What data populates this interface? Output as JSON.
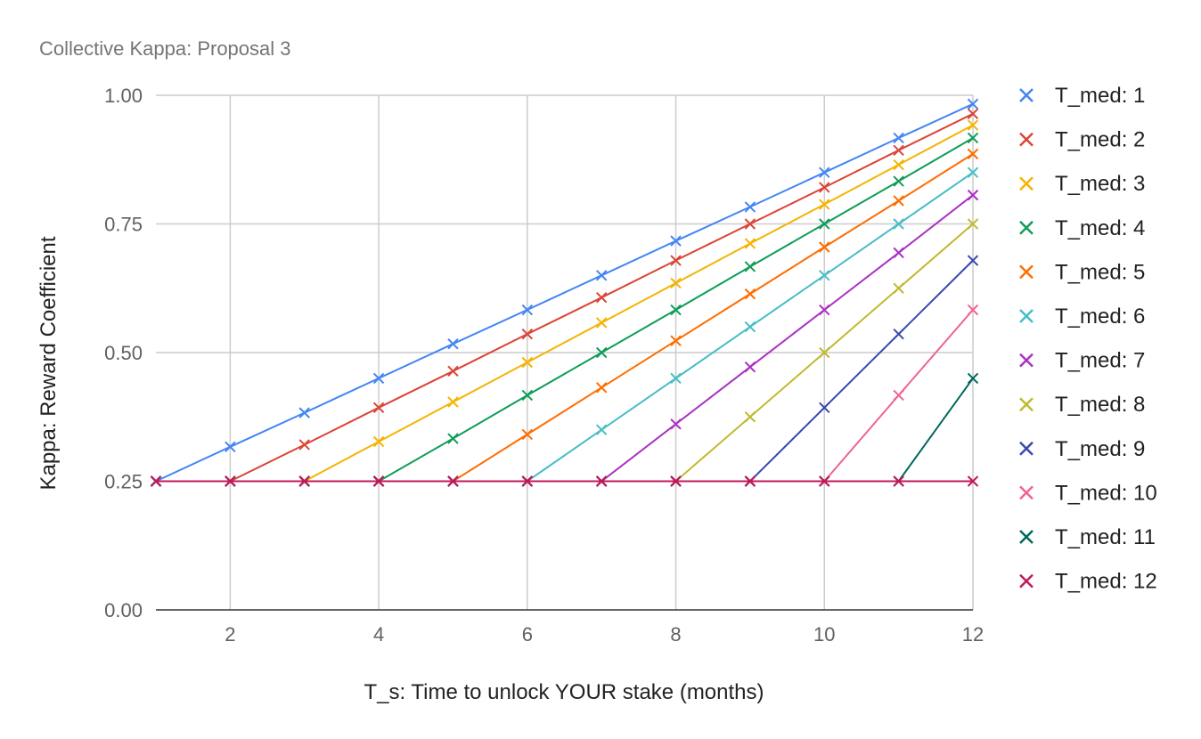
{
  "chart_data": {
    "type": "line",
    "title": "Collective Kappa: Proposal 3",
    "xlabel": "T_s: Time to unlock YOUR stake (months)",
    "ylabel": "Kappa: Reward Coefficient",
    "x": [
      1,
      2,
      3,
      4,
      5,
      6,
      7,
      8,
      9,
      10,
      11,
      12
    ],
    "xlim": [
      1,
      12
    ],
    "ylim": [
      0,
      1
    ],
    "x_ticks": [
      "2",
      "4",
      "6",
      "8",
      "10",
      "12"
    ],
    "x_tick_values": [
      2,
      4,
      6,
      8,
      10,
      12
    ],
    "y_ticks": [
      "0.00",
      "0.25",
      "0.50",
      "0.75",
      "1.00"
    ],
    "y_tick_values": [
      0,
      0.25,
      0.5,
      0.75,
      1.0
    ],
    "grid": true,
    "legend_position": "right",
    "marker": "x",
    "series": [
      {
        "name": "T_med: 1",
        "color": "#4285f4",
        "values": [
          0.25,
          0.317,
          0.383,
          0.45,
          0.517,
          0.583,
          0.65,
          0.717,
          0.783,
          0.85,
          0.917,
          0.983
        ]
      },
      {
        "name": "T_med: 2",
        "color": "#db4437",
        "values": [
          0.25,
          0.25,
          0.321,
          0.393,
          0.464,
          0.536,
          0.607,
          0.679,
          0.75,
          0.821,
          0.893,
          0.964
        ]
      },
      {
        "name": "T_med: 3",
        "color": "#f4b400",
        "values": [
          0.25,
          0.25,
          0.25,
          0.327,
          0.404,
          0.481,
          0.558,
          0.635,
          0.712,
          0.788,
          0.865,
          0.942
        ]
      },
      {
        "name": "T_med: 4",
        "color": "#0f9d58",
        "values": [
          0.25,
          0.25,
          0.25,
          0.25,
          0.333,
          0.417,
          0.5,
          0.583,
          0.667,
          0.75,
          0.833,
          0.917
        ]
      },
      {
        "name": "T_med: 5",
        "color": "#ff6d00",
        "values": [
          0.25,
          0.25,
          0.25,
          0.25,
          0.25,
          0.341,
          0.432,
          0.523,
          0.614,
          0.705,
          0.795,
          0.886
        ]
      },
      {
        "name": "T_med: 6",
        "color": "#46bdc6",
        "values": [
          0.25,
          0.25,
          0.25,
          0.25,
          0.25,
          0.25,
          0.35,
          0.45,
          0.55,
          0.65,
          0.75,
          0.85
        ]
      },
      {
        "name": "T_med: 7",
        "color": "#ab30c4",
        "values": [
          0.25,
          0.25,
          0.25,
          0.25,
          0.25,
          0.25,
          0.25,
          0.361,
          0.472,
          0.583,
          0.694,
          0.806
        ]
      },
      {
        "name": "T_med: 8",
        "color": "#c0ba2e",
        "values": [
          0.25,
          0.25,
          0.25,
          0.25,
          0.25,
          0.25,
          0.25,
          0.25,
          0.375,
          0.5,
          0.625,
          0.75
        ]
      },
      {
        "name": "T_med: 9",
        "color": "#3949ab",
        "values": [
          0.25,
          0.25,
          0.25,
          0.25,
          0.25,
          0.25,
          0.25,
          0.25,
          0.25,
          0.393,
          0.536,
          0.679
        ]
      },
      {
        "name": "T_med: 10",
        "color": "#f06292",
        "values": [
          0.25,
          0.25,
          0.25,
          0.25,
          0.25,
          0.25,
          0.25,
          0.25,
          0.25,
          0.25,
          0.417,
          0.583
        ]
      },
      {
        "name": "T_med: 11",
        "color": "#00695c",
        "values": [
          0.25,
          0.25,
          0.25,
          0.25,
          0.25,
          0.25,
          0.25,
          0.25,
          0.25,
          0.25,
          0.25,
          0.45
        ]
      },
      {
        "name": "T_med: 12",
        "color": "#c2185b",
        "values": [
          0.25,
          0.25,
          0.25,
          0.25,
          0.25,
          0.25,
          0.25,
          0.25,
          0.25,
          0.25,
          0.25,
          0.25
        ]
      }
    ]
  }
}
